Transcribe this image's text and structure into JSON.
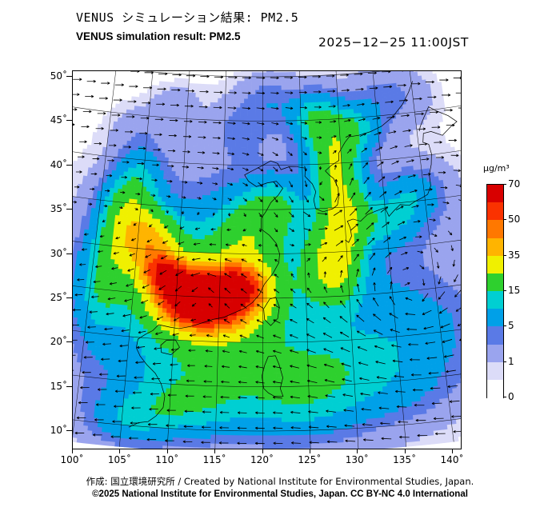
{
  "header": {
    "title_jp": "VENUS シミュレーション結果: PM2.5",
    "title_en": "VENUS simulation result: PM2.5",
    "timestamp": "2025−12−25 11:00JST"
  },
  "map": {
    "lat_tick_labels": [
      "50˚",
      "45˚",
      "40˚",
      "35˚",
      "30˚",
      "25˚",
      "20˚",
      "15˚",
      "10˚"
    ],
    "lon_tick_labels": [
      "100˚",
      "105˚",
      "110˚",
      "115˚",
      "120˚",
      "125˚",
      "130˚",
      "135˚",
      "140˚"
    ]
  },
  "colorbar": {
    "unit_label": "µg/m³",
    "tick_labels_top_to_bottom": [
      "70",
      "50",
      "35",
      "15",
      "5",
      "1",
      "0"
    ]
  },
  "footer": {
    "credit_line": "作成: 国立環境研究所 / Created by National Institute for Environmental Studies, Japan.",
    "license_line": "©2025 National Institute for Environmental Studies, Japan. CC BY-NC 4.0 International"
  },
  "chart_data": {
    "type": "heatmap",
    "title": "VENUS simulation result: PM2.5",
    "pollutant": "PM2.5",
    "timestamp": "2025−12−25 11:00JST",
    "unit": "µg/m³",
    "lon_range": [
      100,
      140
    ],
    "lat_range": [
      10,
      50
    ],
    "lon_ticks": [
      100,
      105,
      110,
      115,
      120,
      125,
      130,
      135,
      140
    ],
    "lat_ticks": [
      10,
      15,
      20,
      25,
      30,
      35,
      40,
      45,
      50
    ],
    "overlay": "wind vector arrows",
    "max_value": 70,
    "level_tick_values": [
      0,
      1,
      5,
      15,
      35,
      50,
      70
    ],
    "level_breaks": [
      0,
      0.5,
      1,
      3,
      5,
      10,
      15,
      25,
      35,
      42.5,
      50,
      60
    ],
    "band_colors": [
      "#ffffff",
      "#dcdcf8",
      "#9aa4ee",
      "#5a7ae6",
      "#00a0e8",
      "#00cfd2",
      "#2ed02e",
      "#f0f000",
      "#ffb400",
      "#ff7800",
      "#fa3200",
      "#d80000"
    ],
    "field_blobs": [
      [
        114.5,
        24.5,
        3.4,
        2.4,
        42
      ],
      [
        111,
        25,
        2.6,
        2.2,
        38
      ],
      [
        117.5,
        26.5,
        2.2,
        1.8,
        30
      ],
      [
        108.3,
        27.6,
        1.7,
        1.5,
        34
      ],
      [
        113.5,
        25,
        6,
        4.5,
        20
      ],
      [
        121,
        26,
        13,
        10,
        7
      ],
      [
        116,
        15.5,
        8,
        3.5,
        9
      ],
      [
        111,
        12.5,
        4,
        2,
        8
      ],
      [
        106,
        10.5,
        3,
        1.8,
        7
      ],
      [
        104.8,
        30.8,
        2.4,
        2.8,
        24
      ],
      [
        107.5,
        31.5,
        2,
        2,
        14
      ],
      [
        103.2,
        34.5,
        2,
        2.4,
        13
      ],
      [
        101.5,
        26,
        2,
        4,
        12
      ],
      [
        104.5,
        38,
        2,
        2.5,
        8
      ],
      [
        118.5,
        32.5,
        3,
        2.6,
        14
      ],
      [
        121.5,
        35.5,
        2.4,
        2,
        10
      ],
      [
        128.3,
        28.5,
        2.2,
        3,
        24
      ],
      [
        129.8,
        34.5,
        2,
        3,
        22
      ],
      [
        129.2,
        40.5,
        2,
        2.6,
        20
      ],
      [
        127,
        45,
        2,
        2,
        15
      ],
      [
        131.8,
        43.8,
        2.2,
        1.8,
        12
      ],
      [
        134.8,
        33.2,
        3,
        1.8,
        9
      ],
      [
        138.8,
        35.8,
        2.4,
        1.8,
        7
      ],
      [
        137,
        20,
        5,
        3.5,
        5
      ],
      [
        127.5,
        17.5,
        5,
        2.5,
        6
      ],
      [
        124.5,
        13,
        4,
        2.5,
        6
      ],
      [
        133,
        14,
        5,
        2.5,
        4
      ],
      [
        136.5,
        47,
        3.5,
        2.2,
        3.5
      ],
      [
        121,
        47,
        2.5,
        2,
        4
      ],
      [
        117,
        44,
        2,
        2,
        3
      ],
      [
        104,
        43.5,
        2.6,
        1.8,
        1.2
      ],
      [
        108.5,
        46.5,
        2,
        1.4,
        1.6
      ]
    ],
    "wind": {
      "background_u_max": 7,
      "background_shear_lat_center": 33,
      "background_shear_lat_width": 9,
      "vortices": [
        [
          128,
          36,
          6,
          7,
          1
        ],
        [
          137,
          24,
          7,
          9,
          -1
        ],
        [
          113,
          26,
          4,
          6,
          1
        ]
      ]
    },
    "coastlines": [
      [
        [
          108.2,
          21.6
        ],
        [
          109.5,
          21.4
        ],
        [
          110.5,
          21.3
        ],
        [
          111.8,
          21.6
        ],
        [
          113.2,
          22.1
        ],
        [
          114.3,
          22.5
        ],
        [
          115.6,
          22.8
        ],
        [
          116.7,
          23.3
        ],
        [
          117.8,
          23.8
        ],
        [
          118.8,
          24.5
        ],
        [
          119.6,
          25.4
        ],
        [
          120.2,
          26.6
        ],
        [
          121.2,
          27.8
        ],
        [
          121.9,
          29.0
        ],
        [
          122.0,
          30.0
        ],
        [
          121.6,
          31.2
        ],
        [
          120.8,
          32.1
        ],
        [
          119.8,
          32.8
        ],
        [
          119.8,
          34.0
        ],
        [
          120.4,
          34.8
        ],
        [
          121.0,
          35.8
        ],
        [
          121.9,
          36.6
        ],
        [
          122.5,
          37.4
        ],
        [
          121.7,
          38.2
        ],
        [
          120.5,
          38.0
        ],
        [
          119.2,
          37.6
        ],
        [
          118.2,
          38.2
        ],
        [
          117.7,
          38.9
        ],
        [
          118.5,
          39.3
        ],
        [
          119.8,
          39.9
        ],
        [
          121.0,
          40.5
        ],
        [
          121.9,
          40.2
        ],
        [
          122.3,
          39.5
        ],
        [
          123.3,
          39.8
        ],
        [
          124.3,
          39.8
        ]
      ],
      [
        [
          124.3,
          39.8
        ],
        [
          125.4,
          39.6
        ],
        [
          125.3,
          38.7
        ],
        [
          126.2,
          37.8
        ],
        [
          126.6,
          36.9
        ],
        [
          126.3,
          36.0
        ],
        [
          126.5,
          35.0
        ],
        [
          127.4,
          34.6
        ],
        [
          128.6,
          34.9
        ],
        [
          129.2,
          35.3
        ],
        [
          129.4,
          36.1
        ],
        [
          129.4,
          37.2
        ],
        [
          128.9,
          38.3
        ],
        [
          128.4,
          38.7
        ],
        [
          127.9,
          39.2
        ],
        [
          128.7,
          39.8
        ],
        [
          129.7,
          40.3
        ],
        [
          129.7,
          41.1
        ],
        [
          130.6,
          42.3
        ],
        [
          131.2,
          42.9
        ],
        [
          132.5,
          43.0
        ],
        [
          134.0,
          43.3
        ],
        [
          135.5,
          43.8
        ],
        [
          137.0,
          44.7
        ],
        [
          138.5,
          46.0
        ],
        [
          139.5,
          47.3
        ],
        [
          140.2,
          48.5
        ]
      ],
      [
        [
          129.9,
          31.3
        ],
        [
          130.3,
          31.0
        ],
        [
          130.7,
          31.7
        ],
        [
          130.6,
          32.6
        ],
        [
          130.3,
          33.4
        ],
        [
          131.0,
          33.6
        ],
        [
          131.9,
          33.3
        ],
        [
          132.8,
          34.0
        ],
        [
          133.8,
          34.3
        ],
        [
          135.0,
          34.6
        ],
        [
          135.4,
          33.6
        ],
        [
          136.1,
          34.2
        ],
        [
          136.9,
          34.8
        ],
        [
          138.0,
          34.6
        ],
        [
          138.8,
          35.0
        ],
        [
          139.7,
          35.3
        ],
        [
          140.4,
          35.6
        ],
        [
          140.9,
          36.5
        ],
        [
          140.9,
          37.8
        ],
        [
          141.3,
          38.9
        ],
        [
          141.5,
          40.1
        ],
        [
          141.3,
          41.2
        ],
        [
          140.6,
          41.5
        ],
        [
          140.8,
          42.5
        ],
        [
          141.8,
          42.6
        ],
        [
          143.2,
          42.0
        ],
        [
          144.5,
          42.9
        ],
        [
          145.3,
          43.3
        ],
        [
          144.3,
          44.1
        ],
        [
          142.9,
          44.8
        ],
        [
          141.9,
          45.4
        ],
        [
          141.2,
          44.4
        ],
        [
          140.5,
          43.3
        ],
        [
          140.3,
          42.8
        ]
      ],
      [
        [
          120.2,
          22.6
        ],
        [
          120.9,
          21.9
        ],
        [
          121.7,
          22.7
        ],
        [
          121.9,
          24.0
        ],
        [
          121.5,
          25.1
        ],
        [
          120.8,
          24.9
        ],
        [
          120.1,
          23.8
        ],
        [
          120.2,
          22.6
        ]
      ],
      [
        [
          108.7,
          18.5
        ],
        [
          109.8,
          18.3
        ],
        [
          110.7,
          19.2
        ],
        [
          110.2,
          20.0
        ],
        [
          109.2,
          19.9
        ],
        [
          108.6,
          19.3
        ],
        [
          108.7,
          18.5
        ]
      ],
      [
        [
          105.8,
          9.8
        ],
        [
          106.8,
          10.4
        ],
        [
          107.8,
          10.6
        ],
        [
          108.6,
          11.3
        ],
        [
          109.3,
          12.3
        ],
        [
          109.4,
          13.6
        ],
        [
          108.9,
          15.0
        ],
        [
          108.2,
          16.1
        ],
        [
          107.2,
          17.0
        ],
        [
          106.4,
          17.9
        ],
        [
          105.9,
          18.8
        ],
        [
          106.0,
          19.8
        ],
        [
          106.8,
          20.4
        ],
        [
          107.6,
          20.9
        ],
        [
          108.2,
          21.6
        ]
      ],
      [
        [
          119.9,
          16.2
        ],
        [
          120.1,
          14.8
        ],
        [
          120.6,
          14.3
        ],
        [
          121.3,
          13.9
        ],
        [
          122.2,
          13.9
        ],
        [
          121.9,
          14.8
        ],
        [
          122.2,
          16.0
        ],
        [
          121.8,
          17.5
        ],
        [
          121.4,
          18.5
        ],
        [
          120.6,
          18.4
        ],
        [
          120.2,
          17.4
        ],
        [
          119.9,
          16.2
        ]
      ]
    ]
  }
}
